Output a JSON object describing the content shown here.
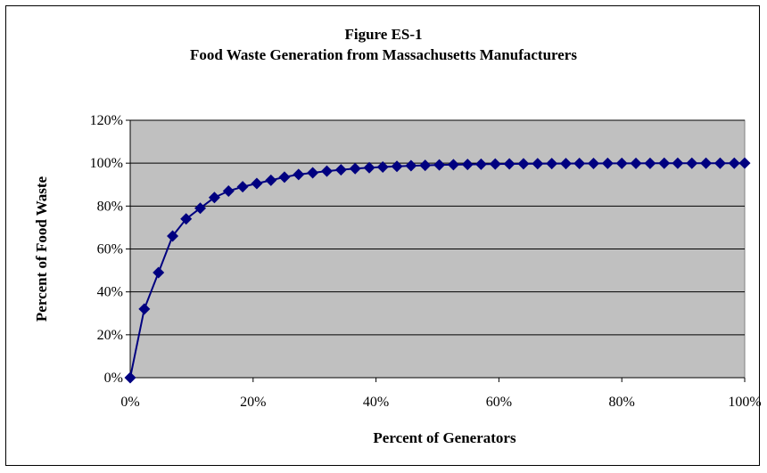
{
  "chart_data": {
    "type": "line",
    "title": "Figure ES-1",
    "subtitle": "Food Waste Generation from Massachusetts Manufacturers",
    "xlabel": "Percent of Generators",
    "ylabel": "Percent of Food Waste",
    "xlim": [
      0,
      100
    ],
    "ylim": [
      0,
      120
    ],
    "x_ticks": [
      "0%",
      "20%",
      "40%",
      "60%",
      "80%",
      "100%"
    ],
    "y_ticks": [
      "0%",
      "20%",
      "40%",
      "60%",
      "80%",
      "100%",
      "120%"
    ],
    "grid": true,
    "plot_background": "#c0c0c0",
    "series_color": "#000080",
    "marker": "diamond",
    "x": [
      0,
      2.3,
      4.6,
      6.9,
      9.1,
      11.4,
      13.7,
      16.0,
      18.3,
      20.6,
      22.9,
      25.1,
      27.4,
      29.7,
      32.0,
      34.3,
      36.6,
      38.9,
      41.1,
      43.4,
      45.7,
      48.0,
      50.3,
      52.6,
      54.9,
      57.1,
      59.4,
      61.7,
      64.0,
      66.3,
      68.6,
      70.9,
      73.1,
      75.4,
      77.7,
      80.0,
      82.3,
      84.6,
      86.9,
      89.1,
      91.4,
      93.7,
      96.0,
      98.3,
      100
    ],
    "y": [
      0,
      32,
      49,
      66,
      74,
      79,
      84,
      87,
      89,
      90.5,
      92,
      93.5,
      94.7,
      95.5,
      96.3,
      96.9,
      97.5,
      97.9,
      98.2,
      98.5,
      98.8,
      99.0,
      99.2,
      99.3,
      99.4,
      99.5,
      99.6,
      99.65,
      99.7,
      99.75,
      99.8,
      99.82,
      99.85,
      99.87,
      99.89,
      99.9,
      99.92,
      99.93,
      99.94,
      99.95,
      99.96,
      99.97,
      99.98,
      99.99,
      100
    ]
  }
}
